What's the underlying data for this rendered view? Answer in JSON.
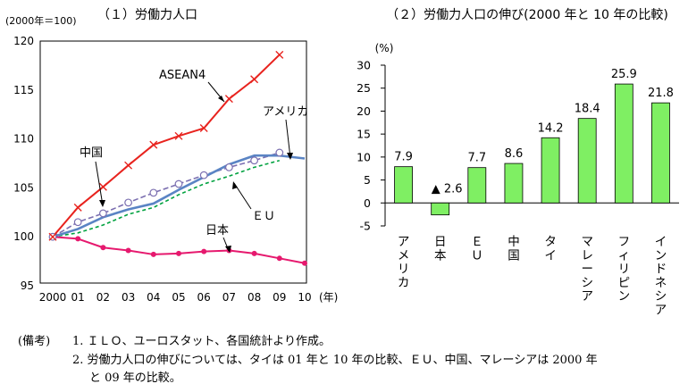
{
  "chart_data": [
    {
      "type": "line",
      "title": "（１）労働力人口",
      "unit_label": "(2000年＝100)",
      "xlabel": "(年)",
      "x": [
        "2000",
        "01",
        "02",
        "03",
        "04",
        "05",
        "06",
        "07",
        "08",
        "09",
        "10"
      ],
      "ylim": [
        95,
        120
      ],
      "yticks": [
        95,
        100,
        105,
        110,
        115,
        120
      ],
      "series": [
        {
          "name": "ASEAN4",
          "color": "#e8231e",
          "values": [
            100,
            103.0,
            105.1,
            107.3,
            109.4,
            110.3,
            111.1,
            114.1,
            116.1,
            118.6,
            null
          ]
        },
        {
          "name": "中国",
          "color": "#7b6fb0",
          "values": [
            100,
            101.5,
            102.4,
            103.5,
            104.5,
            105.4,
            106.3,
            107.1,
            107.8,
            108.6,
            null
          ]
        },
        {
          "name": "ＥＵ",
          "color": "#00a23f",
          "values": [
            100,
            100.4,
            101.2,
            102.3,
            103.0,
            104.3,
            105.4,
            106.2,
            107.1,
            107.8,
            null
          ]
        },
        {
          "name": "アメリカ",
          "color": "#5a84c4",
          "values": [
            100,
            100.8,
            102.0,
            102.8,
            103.4,
            104.8,
            106.1,
            107.4,
            108.3,
            108.3,
            108.0
          ]
        },
        {
          "name": "日本",
          "color": "#e6196e",
          "values": [
            100,
            99.8,
            98.9,
            98.6,
            98.2,
            98.3,
            98.5,
            98.6,
            98.3,
            97.8,
            97.3
          ]
        }
      ]
    },
    {
      "type": "bar",
      "title": "（２）労働力人口の伸び(2000 年と 10 年の比較)",
      "unit_label": "(%)",
      "categories": [
        "アメリカ",
        "日本",
        "ＥＵ",
        "中国",
        "タイ",
        "マレーシア",
        "フィリピン",
        "インドネシア"
      ],
      "values": [
        7.9,
        -2.6,
        7.7,
        8.6,
        14.2,
        18.4,
        25.9,
        21.8
      ],
      "value_labels": [
        "7.9",
        "▲ 2.6",
        "7.7",
        "8.6",
        "14.2",
        "18.4",
        "25.9",
        "21.8"
      ],
      "ylim": [
        -5,
        30
      ],
      "yticks": [
        -5,
        0,
        5,
        10,
        15,
        20,
        25,
        30
      ],
      "bar_color": "#7fef63"
    }
  ],
  "notes": {
    "label": "(備考)",
    "line1": "1.  ＩＬＯ、ユーロスタット、各国統計より作成。",
    "line2": "2.  労働力人口の伸びについては、タイは 01 年と 10 年の比較、ＥＵ、中国、マレーシアは 2000 年",
    "line3": "と 09 年の比較。"
  }
}
